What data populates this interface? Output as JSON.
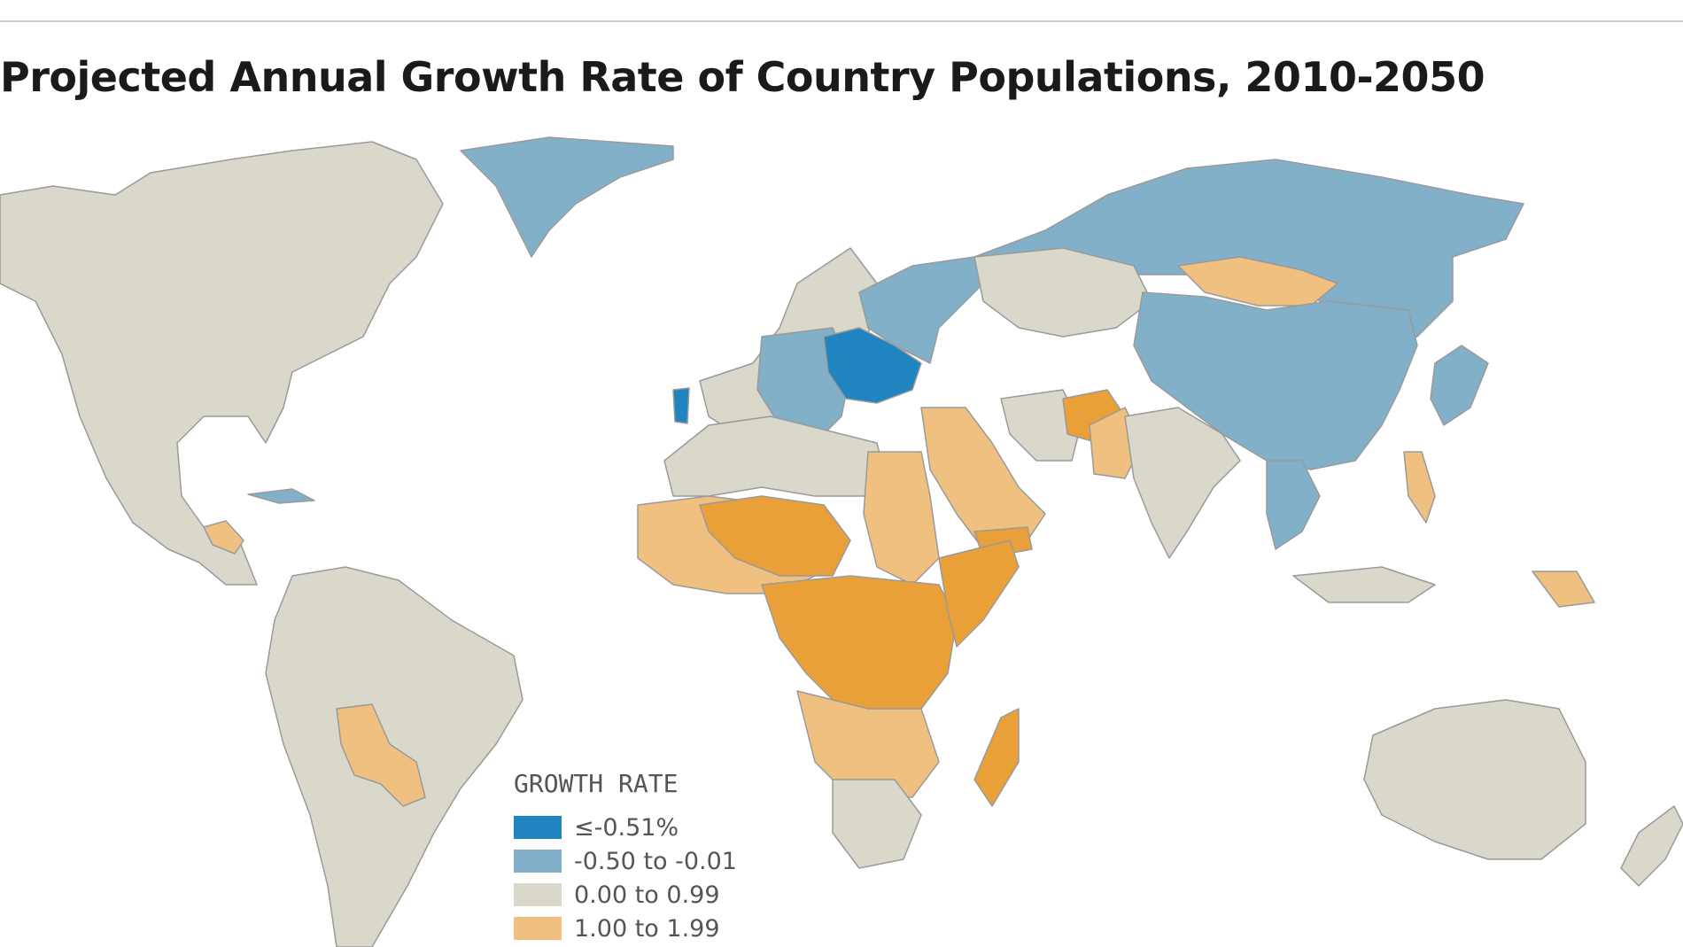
{
  "title": "Projected Annual Growth Rate of Country Populations, 2010-2050",
  "colors": {
    "ocean": "#ffffff",
    "border": "#9a9a9a",
    "dark_blue": "#1f84bf",
    "light_blue": "#82b0c9",
    "neutral": "#d9d8ca",
    "light_orange": "#f0c080",
    "dark_orange": "#eaa038"
  },
  "legend": {
    "title": "GROWTH RATE",
    "items": [
      {
        "label": "≤-0.51%",
        "color": "#1f84bf"
      },
      {
        "label": "-0.50 to -0.01",
        "color": "#82b0c9"
      },
      {
        "label": "0.00 to 0.99",
        "color": "#d9d8ca"
      },
      {
        "label": "1.00 to 1.99",
        "color": "#f0c080"
      }
    ]
  }
}
